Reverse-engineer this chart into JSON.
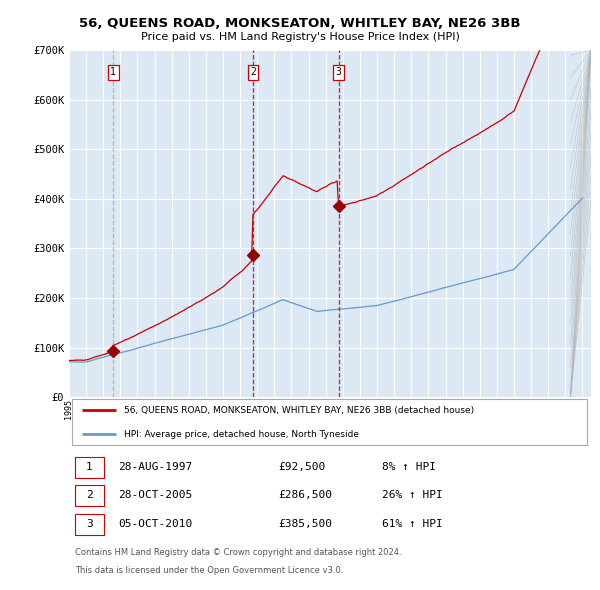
{
  "title": "56, QUEENS ROAD, MONKSEATON, WHITLEY BAY, NE26 3BB",
  "subtitle": "Price paid vs. HM Land Registry's House Price Index (HPI)",
  "plot_bg_color": "#dce9f5",
  "grid_color": "#ffffff",
  "ylim": [
    0,
    700000
  ],
  "yticks": [
    0,
    100000,
    200000,
    300000,
    400000,
    500000,
    600000,
    700000
  ],
  "ytick_labels": [
    "£0",
    "£100K",
    "£200K",
    "£300K",
    "£400K",
    "£500K",
    "£600K",
    "£700K"
  ],
  "x_start_year": 1995,
  "x_end_year": 2025,
  "sale_years": [
    1997.66,
    2005.83,
    2010.76
  ],
  "sale_prices": [
    92500,
    286500,
    385500
  ],
  "sale_labels": [
    "1",
    "2",
    "3"
  ],
  "red_line_color": "#cc0000",
  "blue_line_color": "#6699cc",
  "marker_color": "#990000",
  "dashed_line_color_1": "#aaaaaa",
  "dashed_line_color_2": "#cc0000",
  "legend_label_red": "56, QUEENS ROAD, MONKSEATON, WHITLEY BAY, NE26 3BB (detached house)",
  "legend_label_blue": "HPI: Average price, detached house, North Tyneside",
  "table_rows": [
    [
      "1",
      "28-AUG-1997",
      "£92,500",
      "8% ↑ HPI"
    ],
    [
      "2",
      "28-OCT-2005",
      "£286,500",
      "26% ↑ HPI"
    ],
    [
      "3",
      "05-OCT-2010",
      "£385,500",
      "61% ↑ HPI"
    ]
  ],
  "footnote1": "Contains HM Land Registry data © Crown copyright and database right 2024.",
  "footnote2": "This data is licensed under the Open Government Licence v3.0."
}
